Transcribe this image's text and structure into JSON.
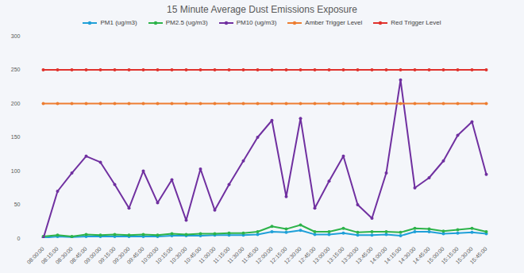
{
  "chart_data": {
    "type": "line",
    "title": "15 Minute Average Dust Emissions Exposure",
    "categories": [
      "08:00:00",
      "08:15:00",
      "08:30:00",
      "08:45:00",
      "09:00:00",
      "09:15:00",
      "09:30:00",
      "09:45:00",
      "10:00:00",
      "10:15:00",
      "10:30:00",
      "10:45:00",
      "11:00:00",
      "11:15:00",
      "11:30:00",
      "11:45:00",
      "12:00:00",
      "12:15:00",
      "12:30:00",
      "12:45:00",
      "13:00:00",
      "13:15:00",
      "13:30:00",
      "13:45:00",
      "14:00:00",
      "14:15:00",
      "14:30:00",
      "14:45:00",
      "15:00:00",
      "15:15:00",
      "15:30:00",
      "15:45:00"
    ],
    "series": [
      {
        "name": "PM1 (ug/m3)",
        "color": "#1fa0d8",
        "marker": "circle",
        "values": [
          1,
          3,
          2,
          3,
          3,
          3,
          3,
          3,
          3,
          4,
          4,
          4,
          5,
          5,
          5,
          6,
          10,
          9,
          12,
          6,
          6,
          8,
          5,
          5,
          6,
          4,
          10,
          10,
          7,
          8,
          9,
          7
        ]
      },
      {
        "name": "PM2.5 (ug/m3)",
        "color": "#2db34a",
        "marker": "circle",
        "values": [
          3,
          5,
          3,
          6,
          5,
          6,
          5,
          6,
          5,
          7,
          6,
          7,
          7,
          8,
          8,
          10,
          18,
          14,
          20,
          10,
          10,
          15,
          9,
          10,
          10,
          9,
          15,
          14,
          11,
          13,
          15,
          10
        ]
      },
      {
        "name": "PM10 (ug/m3)",
        "color": "#7030a0",
        "marker": "circle",
        "values": [
          0,
          70,
          97,
          122,
          113,
          80,
          45,
          100,
          53,
          87,
          27,
          103,
          42,
          80,
          115,
          150,
          175,
          62,
          178,
          45,
          85,
          122,
          50,
          30,
          97,
          235,
          75,
          90,
          115,
          153,
          173,
          95
        ]
      },
      {
        "name": "Amber Trigger Level",
        "color": "#ed7d31",
        "marker": "circle",
        "values": [
          200,
          200,
          200,
          200,
          200,
          200,
          200,
          200,
          200,
          200,
          200,
          200,
          200,
          200,
          200,
          200,
          200,
          200,
          200,
          200,
          200,
          200,
          200,
          200,
          200,
          200,
          200,
          200,
          200,
          200,
          200,
          200
        ]
      },
      {
        "name": "Red Trigger Level",
        "color": "#e0312c",
        "marker": "circle",
        "values": [
          250,
          250,
          250,
          250,
          250,
          250,
          250,
          250,
          250,
          250,
          250,
          250,
          250,
          250,
          250,
          250,
          250,
          250,
          250,
          250,
          250,
          250,
          250,
          250,
          250,
          250,
          250,
          250,
          250,
          250,
          250,
          250
        ]
      }
    ],
    "ylim": [
      0,
      300
    ],
    "yticks": [
      0,
      50,
      100,
      150,
      200,
      250,
      300
    ],
    "grid": false,
    "legend": "top"
  }
}
